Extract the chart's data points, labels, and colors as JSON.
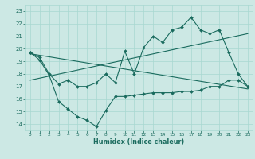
{
  "title": "",
  "xlabel": "Humidex (Indice chaleur)",
  "ylabel": "",
  "bg_color": "#cce8e4",
  "line_color": "#1a6b5e",
  "grid_color": "#a8d8d0",
  "xlim": [
    -0.5,
    23.5
  ],
  "ylim": [
    13.5,
    23.5
  ],
  "xticks": [
    0,
    1,
    2,
    3,
    4,
    5,
    6,
    7,
    8,
    9,
    10,
    11,
    12,
    13,
    14,
    15,
    16,
    17,
    18,
    19,
    20,
    21,
    22,
    23
  ],
  "yticks": [
    14,
    15,
    16,
    17,
    18,
    19,
    20,
    21,
    22,
    23
  ],
  "line1_x": [
    0,
    1,
    2,
    3,
    4,
    5,
    6,
    7,
    8,
    9,
    10,
    11,
    12,
    13,
    14,
    15,
    16,
    17,
    18,
    19,
    20,
    21,
    22,
    23
  ],
  "line1_y": [
    19.7,
    19.3,
    18.0,
    17.2,
    17.5,
    17.0,
    17.0,
    17.3,
    18.0,
    17.3,
    19.8,
    18.0,
    20.1,
    21.0,
    20.5,
    21.5,
    21.7,
    22.5,
    21.5,
    21.2,
    21.5,
    19.7,
    18.0,
    17.0
  ],
  "line2_x": [
    0,
    1,
    2,
    3,
    4,
    5,
    6,
    7,
    8,
    9,
    10,
    11,
    12,
    13,
    14,
    15,
    16,
    17,
    18,
    19,
    20,
    21,
    22,
    23
  ],
  "line2_y": [
    19.7,
    19.1,
    17.9,
    15.8,
    15.2,
    14.6,
    14.3,
    13.8,
    15.1,
    16.2,
    16.2,
    16.3,
    16.4,
    16.5,
    16.5,
    16.5,
    16.6,
    16.6,
    16.7,
    17.0,
    17.0,
    17.5,
    17.5,
    17.0
  ],
  "trend1_x": [
    0,
    23
  ],
  "trend1_y": [
    17.5,
    21.2
  ],
  "trend2_x": [
    0,
    23
  ],
  "trend2_y": [
    19.6,
    16.8
  ],
  "xtick_fontsize": 4.2,
  "ytick_fontsize": 5.0,
  "xlabel_fontsize": 5.8
}
